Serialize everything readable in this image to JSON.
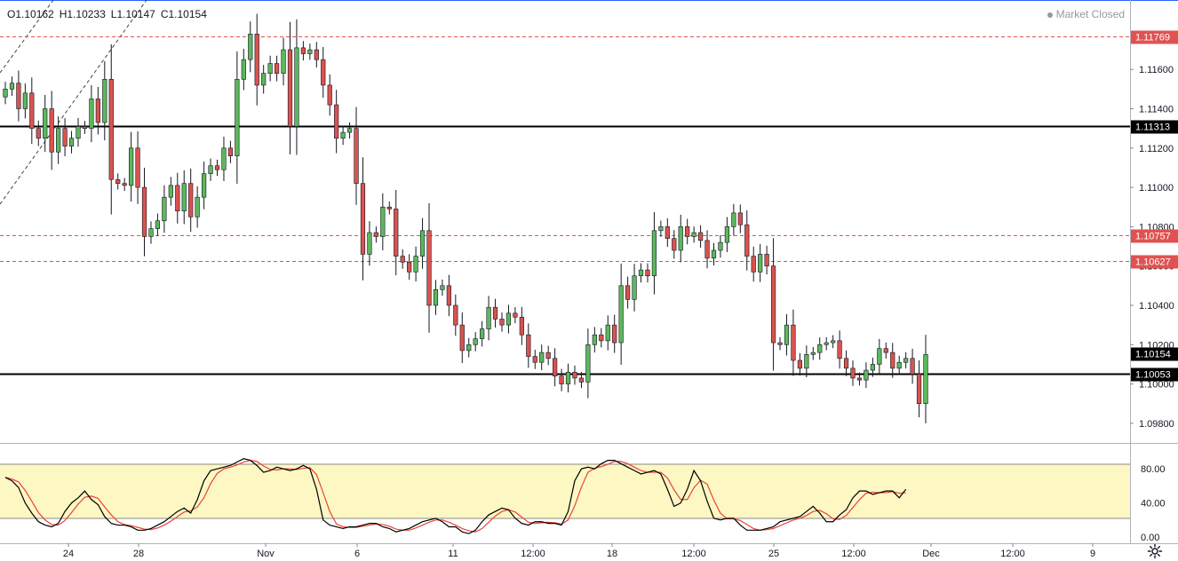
{
  "ohlc": {
    "open": "O1.10162",
    "high": "H1.10233",
    "low": "L1.10147",
    "close": "C1.10154"
  },
  "status": "Market Closed",
  "colors": {
    "up": "#5cb85c",
    "down": "#d9534f",
    "wick": "#131722",
    "hline_solid": "#000000",
    "hline_dashed": "#e05252",
    "stoch_k": "#000000",
    "stoch_d": "#e8443a",
    "stoch_band": "#fdf7c3"
  },
  "chart_data": [
    {
      "type": "candlestick",
      "title": "",
      "y_axis_labels": [
        "1.11600",
        "1.11400",
        "1.11200",
        "1.11000",
        "1.10800",
        "1.10600",
        "1.10400",
        "1.10200",
        "1.10000",
        "1.09800"
      ],
      "ylim": [
        1.097,
        1.1189
      ],
      "x_axis_labels": [
        "24",
        "28",
        "Nov",
        "6",
        "11",
        "12:00",
        "18",
        "12:00",
        "25",
        "12:00",
        "Dec",
        "12:00",
        "9"
      ],
      "horizontal_levels": [
        {
          "value": 1.11769,
          "label": "1.11769",
          "style": "dashed"
        },
        {
          "value": 1.11313,
          "label": "1.11313",
          "style": "solid"
        },
        {
          "value": 1.10757,
          "label": "1.10757",
          "style": "dashed"
        },
        {
          "value": 1.10627,
          "label": "1.10627",
          "style": "dashed"
        },
        {
          "value": 1.10154,
          "label": "1.10154",
          "style": "last"
        },
        {
          "value": 1.10053,
          "label": "1.10053",
          "style": "solid"
        }
      ],
      "close_path": [
        1.115,
        1.1153,
        1.114,
        1.1148,
        1.113,
        1.1125,
        1.114,
        1.1118,
        1.113,
        1.1121,
        1.1125,
        1.1131,
        1.113,
        1.1145,
        1.1133,
        1.1155,
        1.1104,
        1.1102,
        1.1101,
        1.112,
        1.11,
        1.1075,
        1.1079,
        1.1083,
        1.1095,
        1.1101,
        1.1088,
        1.1102,
        1.1085,
        1.1095,
        1.1107,
        1.1111,
        1.1109,
        1.112,
        1.1116,
        1.1155,
        1.1165,
        1.1178,
        1.1152,
        1.1158,
        1.1163,
        1.1158,
        1.117,
        1.1131,
        1.1171,
        1.1168,
        1.117,
        1.1165,
        1.1152,
        1.1142,
        1.1125,
        1.1128,
        1.113,
        1.1102,
        1.1066,
        1.1077,
        1.1075,
        1.109,
        1.1089,
        1.1065,
        1.1062,
        1.1057,
        1.1065,
        1.1078,
        1.104,
        1.1048,
        1.105,
        1.104,
        1.103,
        1.1017,
        1.102,
        1.1023,
        1.1028,
        1.1039,
        1.1033,
        1.103,
        1.1036,
        1.1034,
        1.1025,
        1.1014,
        1.1011,
        1.1016,
        1.1013,
        1.1004,
        1.1,
        1.1006,
        1.1003,
        1.1001,
        1.102,
        1.1025,
        1.1022,
        1.103,
        1.1021,
        1.105,
        1.1043,
        1.1055,
        1.1058,
        1.1055,
        1.1078,
        1.108,
        1.1074,
        1.1068,
        1.108,
        1.1075,
        1.1077,
        1.1073,
        1.1064,
        1.1068,
        1.1072,
        1.108,
        1.1087,
        1.1081,
        1.1065,
        1.1057,
        1.1066,
        1.106,
        1.1021,
        1.102,
        1.103,
        1.1012,
        1.1008,
        1.1015,
        1.1016,
        1.102,
        1.1021,
        1.1022,
        1.1013,
        1.1008,
        1.1003,
        1.1002,
        1.1007,
        1.101,
        1.1018,
        1.1016,
        1.1008,
        1.1011,
        1.1013,
        1.1005,
        1.099,
        1.1015
      ],
      "stochastic": {
        "y_axis_labels": [
          "80.00",
          "40.00",
          "0.00"
        ],
        "ylim": [
          0,
          100
        ],
        "overbought": 80,
        "oversold": 20,
        "k_line": [
          70,
          66,
          58,
          40,
          28,
          18,
          14,
          12,
          16,
          30,
          40,
          46,
          54,
          44,
          38,
          24,
          16,
          14,
          14,
          12,
          8,
          8,
          10,
          14,
          18,
          24,
          30,
          34,
          28,
          44,
          66,
          78,
          80,
          82,
          84,
          88,
          92,
          90,
          84,
          76,
          78,
          82,
          80,
          78,
          80,
          84,
          80,
          56,
          20,
          14,
          12,
          10,
          12,
          12,
          14,
          16,
          16,
          12,
          10,
          6,
          8,
          10,
          14,
          18,
          20,
          22,
          18,
          12,
          12,
          6,
          4,
          8,
          18,
          26,
          30,
          34,
          32,
          22,
          16,
          14,
          18,
          18,
          16,
          16,
          14,
          30,
          66,
          80,
          82,
          80,
          86,
          90,
          90,
          86,
          82,
          78,
          74,
          76,
          78,
          74,
          56,
          36,
          40,
          56,
          78,
          66,
          42,
          22,
          20,
          22,
          22,
          14,
          8,
          8,
          8,
          10,
          12,
          18,
          20,
          22,
          24,
          30,
          36,
          28,
          18,
          18,
          26,
          32,
          46,
          54,
          54,
          50,
          52,
          54,
          54,
          46,
          56
        ]
      }
    }
  ]
}
